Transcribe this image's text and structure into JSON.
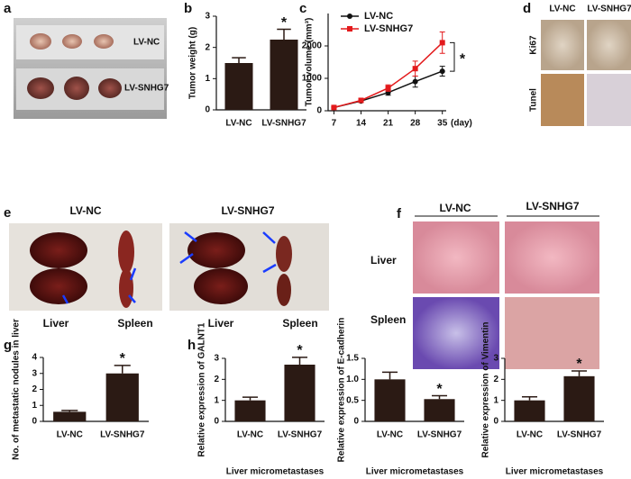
{
  "panel_letters": [
    "a",
    "b",
    "c",
    "d",
    "e",
    "f",
    "g",
    "h"
  ],
  "panels": {
    "a": {
      "labels": [
        "LV-NC",
        "LV-SNHG7"
      ]
    },
    "d": {
      "columns": [
        "LV-NC",
        "LV-SNHG7"
      ],
      "rows": [
        "Ki67",
        "Tunel"
      ]
    },
    "e": {
      "columns": [
        "LV-NC",
        "LV-SNHG7"
      ],
      "captions": [
        "Liver",
        "Spleen",
        "Liver",
        "Spleen"
      ]
    },
    "f": {
      "columns": [
        "LV-NC",
        "LV-SNHG7"
      ],
      "rows": [
        "Liver",
        "Spleen"
      ]
    }
  },
  "chart_data": [
    {
      "type": "bar",
      "y_label": "Tumor weight (g)",
      "categories": [
        "LV-NC",
        "LV-SNHG7"
      ],
      "values": [
        1.5,
        2.25
      ],
      "errors": [
        0.17,
        0.33
      ],
      "color": "#2b1a14",
      "ylim": [
        0,
        3
      ],
      "yticks": [
        0,
        1,
        2,
        3
      ],
      "annotations": [
        "*"
      ]
    },
    {
      "type": "line",
      "y_label": "Tumor volume (mm³)",
      "x_label": "(day)",
      "x": [
        7,
        14,
        21,
        28,
        35
      ],
      "xlim": [
        5.5,
        36
      ],
      "xticks": [
        7,
        14,
        21,
        28,
        35
      ],
      "ylim": [
        0,
        3000
      ],
      "yticks": [
        0,
        1000,
        2000
      ],
      "series": [
        {
          "name": "LV-NC",
          "color": "#111111",
          "values": [
            100,
            300,
            560,
            900,
            1220
          ],
          "errors": [
            20,
            40,
            80,
            170,
            150
          ]
        },
        {
          "name": "LV-SNHG7",
          "color": "#e31a1c",
          "values": [
            100,
            320,
            700,
            1300,
            2100
          ],
          "errors": [
            20,
            50,
            100,
            230,
            330
          ]
        }
      ],
      "annotations": [
        "*"
      ]
    },
    {
      "type": "bar",
      "y_label": "No. of metastatic nodules in liver",
      "categories": [
        "LV-NC",
        "LV-SNHG7"
      ],
      "values": [
        0.6,
        3.0
      ],
      "errors": [
        0.08,
        0.5
      ],
      "color": "#2b1a14",
      "ylim": [
        0,
        4
      ],
      "yticks": [
        0,
        1,
        2,
        3,
        4
      ],
      "annotations": [
        "*"
      ]
    },
    {
      "type": "bar",
      "y_label": "Relative expression of GALNT1",
      "x_label": "Liver micrometastases",
      "categories": [
        "LV-NC",
        "LV-SNHG7"
      ],
      "values": [
        1.0,
        2.7
      ],
      "errors": [
        0.15,
        0.35
      ],
      "color": "#2b1a14",
      "ylim": [
        0,
        3
      ],
      "yticks": [
        0,
        1,
        2,
        3
      ],
      "annotations": [
        "*"
      ]
    },
    {
      "type": "bar",
      "y_label": "Relative expression of E-cadherin",
      "x_label": "Liver micrometastases",
      "categories": [
        "LV-NC",
        "LV-SNHG7"
      ],
      "values": [
        1.0,
        0.53
      ],
      "errors": [
        0.17,
        0.08
      ],
      "color": "#2b1a14",
      "ylim": [
        0,
        1.5
      ],
      "yticks": [
        0,
        0.5,
        {
          "value": 1,
          "label": "1.0"
        },
        1.5
      ],
      "annotations": [
        "*"
      ]
    },
    {
      "type": "bar",
      "y_label": "Relative expression of Vimentin",
      "x_label": "Liver micrometastases",
      "categories": [
        "LV-NC",
        "LV-SNHG7"
      ],
      "values": [
        1.0,
        2.15
      ],
      "errors": [
        0.17,
        0.25
      ],
      "color": "#2b1a14",
      "ylim": [
        0,
        3
      ],
      "yticks": [
        0,
        1,
        2,
        3
      ],
      "annotations": [
        "*"
      ]
    }
  ]
}
